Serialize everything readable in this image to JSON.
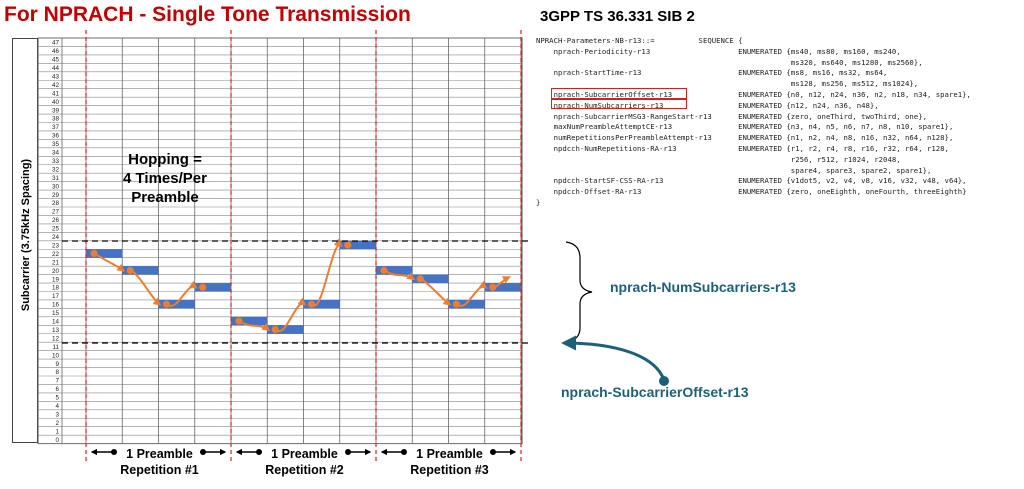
{
  "header": {
    "title": "For NPRACH - Single Tone Transmission",
    "spec_title": "3GPP TS 36.331 SIB 2"
  },
  "asn1": {
    "lines": [
      "NPRACH-Parameters-NB-r13::=          SEQUENCE {",
      "    nprach-Periodicity-r13                    ENUMERATED {ms40, ms80, ms160, ms240,",
      "                                                          ms320, ms640, ms1280, ms2560},",
      "    nprach-StartTime-r13                      ENUMERATED {ms8, ms16, ms32, ms64,",
      "                                                          ms128, ms256, ms512, ms1024},",
      "    nprach-SubcarrierOffset-r13               ENUMERATED {n0, n12, n24, n36, n2, n18, n34, spare1},",
      "    nprach-NumSubcarriers-r13                 ENUMERATED {n12, n24, n36, n48},",
      "    nprach-SubcarrierMSG3-RangeStart-r13      ENUMERATED {zero, oneThird, twoThird, one},",
      "    maxNumPreambleAttemptCE-r13               ENUMERATED {n3, n4, n5, n6, n7, n8, n10, spare1},",
      "    numRepetitionsPerPreambleAttempt-r13      ENUMERATED {n1, n2, n4, n8, n16, n32, n64, n128},",
      "    npdcch-NumRepetitions-RA-r13              ENUMERATED {r1, r2, r4, r8, r16, r32, r64, r128,",
      "                                                          r256, r512, r1024, r2048,",
      "                                                          spare4, spare3, spare2, spare1},",
      "    npdcch-StartSF-CSS-RA-r13                 ENUMERATED {v1dot5, v2, v4, v8, v16, v32, v48, v64},",
      "    npdcch-Offset-RA-r13                      ENUMERATED {zero, oneEighth, oneFourth, threeEighth}",
      "}"
    ]
  },
  "grid": {
    "y_axis_label": "Subcarrier (3.75kHz Spacing)",
    "subcarriers": [
      "0",
      "1",
      "2",
      "3",
      "4",
      "5",
      "6",
      "7",
      "8",
      "9",
      "10",
      "11",
      "12",
      "13",
      "14",
      "15",
      "16",
      "17",
      "18",
      "19",
      "20",
      "21",
      "22",
      "23",
      "24",
      "25",
      "26",
      "27",
      "28",
      "29",
      "30",
      "31",
      "32",
      "33",
      "34",
      "35",
      "36",
      "37",
      "38",
      "39",
      "40",
      "41",
      "42",
      "43",
      "44",
      "45",
      "46",
      "47"
    ],
    "hopping": [
      "Hopping =",
      "4 Times/Per",
      "Preamble"
    ],
    "repetitions": [
      {
        "line1": "1 Preamble",
        "line2": "Repetition #1"
      },
      {
        "line1": "1 Preamble",
        "line2": "Repetition #2"
      },
      {
        "line1": "1 Preamble",
        "line2": "Repetition #3"
      }
    ],
    "symbol_groups": [
      22,
      20,
      16,
      18,
      14,
      13,
      16,
      23,
      20,
      19,
      16,
      18
    ],
    "band_range": [
      12,
      23
    ]
  },
  "annotations": {
    "num_subcarriers": "nprach-NumSubcarriers-r13",
    "subcarrier_offset": "nprach-SubcarrierOffset-r13"
  },
  "colors": {
    "title": "#c00000",
    "block": "#4472c4",
    "hop_arrow": "#ed7d31",
    "boundary": "#e02020",
    "annotation": "#1f6079"
  }
}
